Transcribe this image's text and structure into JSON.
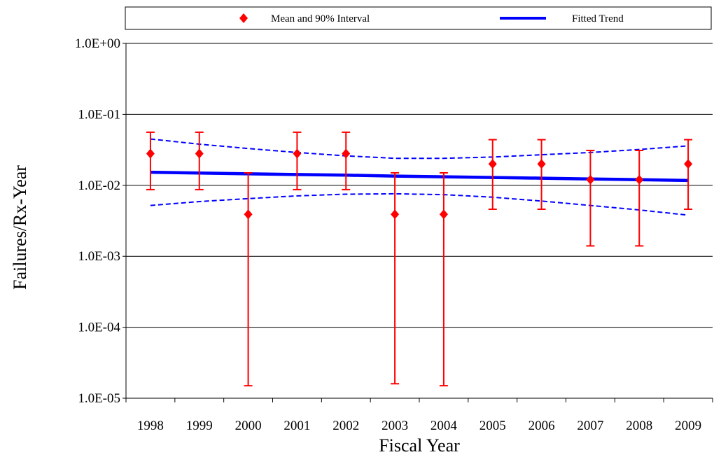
{
  "chart_data": {
    "type": "scatter",
    "legend": {
      "placement": "top",
      "items": [
        {
          "label": "Mean and 90% Interval",
          "color": "#ff0000",
          "marker": "diamond"
        },
        {
          "label": "Fitted Trend",
          "color": "#0000ff",
          "marker": "line"
        }
      ]
    },
    "xlabel": "Fiscal Year",
    "ylabel": "Failures/Rx-Year",
    "categories": [
      "1998",
      "1999",
      "2000",
      "2001",
      "2002",
      "2003",
      "2004",
      "2005",
      "2006",
      "2007",
      "2008",
      "2009"
    ],
    "y_scale": "log",
    "ylim": [
      1e-05,
      1
    ],
    "y_ticks": [
      {
        "value": 1,
        "label": "1.0E+00"
      },
      {
        "value": 0.1,
        "label": "1.0E-01"
      },
      {
        "value": 0.01,
        "label": "1.0E-02"
      },
      {
        "value": 0.001,
        "label": "1.0E-03"
      },
      {
        "value": 0.0001,
        "label": "1.0E-04"
      },
      {
        "value": 1e-05,
        "label": "1.0E-05"
      }
    ],
    "grid": true,
    "series": [
      {
        "name": "Mean and 90% Interval",
        "color": "#ff0000",
        "mean": [
          0.028,
          0.028,
          0.0039,
          0.028,
          0.028,
          0.0039,
          0.0039,
          0.02,
          0.02,
          0.012,
          0.012,
          0.02
        ],
        "lower": [
          0.0087,
          0.0087,
          1.5e-05,
          0.0087,
          0.0087,
          1.6e-05,
          1.5e-05,
          0.0046,
          0.0046,
          0.0014,
          0.0014,
          0.0046
        ],
        "upper": [
          0.056,
          0.056,
          0.015,
          0.056,
          0.056,
          0.015,
          0.015,
          0.044,
          0.044,
          0.031,
          0.031,
          0.044
        ]
      },
      {
        "name": "Fitted Trend",
        "color": "#0000ff",
        "values": [
          0.0153,
          0.0149,
          0.0145,
          0.0142,
          0.0139,
          0.0135,
          0.0132,
          0.0129,
          0.0126,
          0.0123,
          0.012,
          0.0117
        ],
        "upper_band": [
          0.045,
          0.038,
          0.033,
          0.029,
          0.026,
          0.024,
          0.024,
          0.025,
          0.027,
          0.029,
          0.032,
          0.036
        ],
        "lower_band": [
          0.0052,
          0.0059,
          0.0065,
          0.0071,
          0.0075,
          0.0076,
          0.0074,
          0.0068,
          0.006,
          0.0052,
          0.0045,
          0.0038
        ]
      }
    ]
  }
}
